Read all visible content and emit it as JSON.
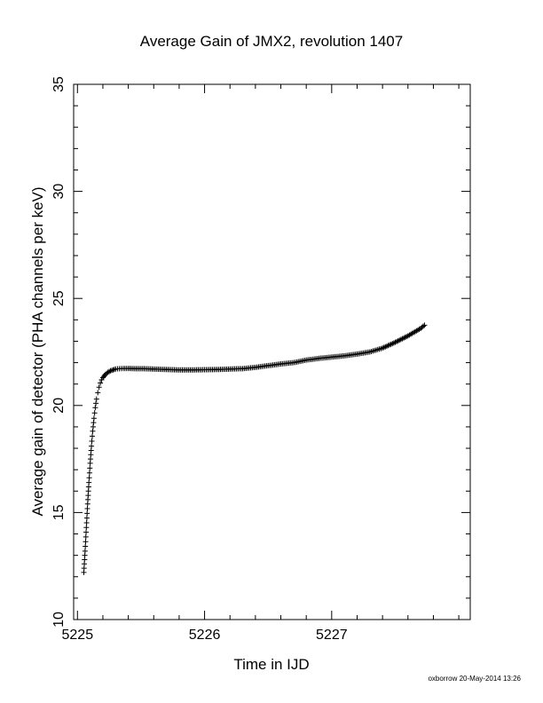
{
  "chart_data": {
    "type": "scatter",
    "title": "Average Gain of JMX2, revolution 1407",
    "xlabel": "Time in IJD",
    "ylabel": "Average gain of detector (PHA channels per keV)",
    "xlim": [
      5224.97,
      5228.09
    ],
    "ylim": [
      10,
      35
    ],
    "x_ticks": [
      5225,
      5226,
      5227
    ],
    "y_ticks": [
      10,
      15,
      20,
      25,
      30,
      35
    ],
    "grid": false,
    "marker": "plus",
    "series": [
      {
        "x": [
          5225.05,
          5225.06,
          5225.07,
          5225.08,
          5225.09,
          5225.1,
          5225.11,
          5225.12,
          5225.13,
          5225.14,
          5225.15,
          5225.16,
          5225.17,
          5225.18,
          5225.19,
          5225.2,
          5225.22,
          5225.24,
          5225.26,
          5225.28,
          5225.3,
          5225.33,
          5225.36,
          5225.4,
          5225.45,
          5225.5,
          5225.6,
          5225.7,
          5225.8,
          5225.9,
          5226.0,
          5226.1,
          5226.2,
          5226.3,
          5226.4,
          5226.5,
          5226.6,
          5226.7,
          5226.8,
          5226.9,
          5227.0,
          5227.1,
          5227.2,
          5227.3,
          5227.4,
          5227.5,
          5227.6,
          5227.7,
          5227.73
        ],
        "y": [
          12.2,
          13.2,
          14.3,
          15.4,
          16.4,
          17.3,
          18.1,
          18.8,
          19.4,
          19.9,
          20.3,
          20.6,
          20.85,
          21.05,
          21.2,
          21.3,
          21.45,
          21.55,
          21.62,
          21.66,
          21.7,
          21.72,
          21.73,
          21.73,
          21.72,
          21.72,
          21.7,
          21.68,
          21.66,
          21.66,
          21.67,
          21.68,
          21.7,
          21.72,
          21.78,
          21.86,
          21.94,
          22.0,
          22.12,
          22.2,
          22.26,
          22.32,
          22.4,
          22.5,
          22.68,
          22.95,
          23.25,
          23.6,
          23.75
        ]
      }
    ]
  },
  "footer": "oxborrow 20-May-2014 13:26"
}
